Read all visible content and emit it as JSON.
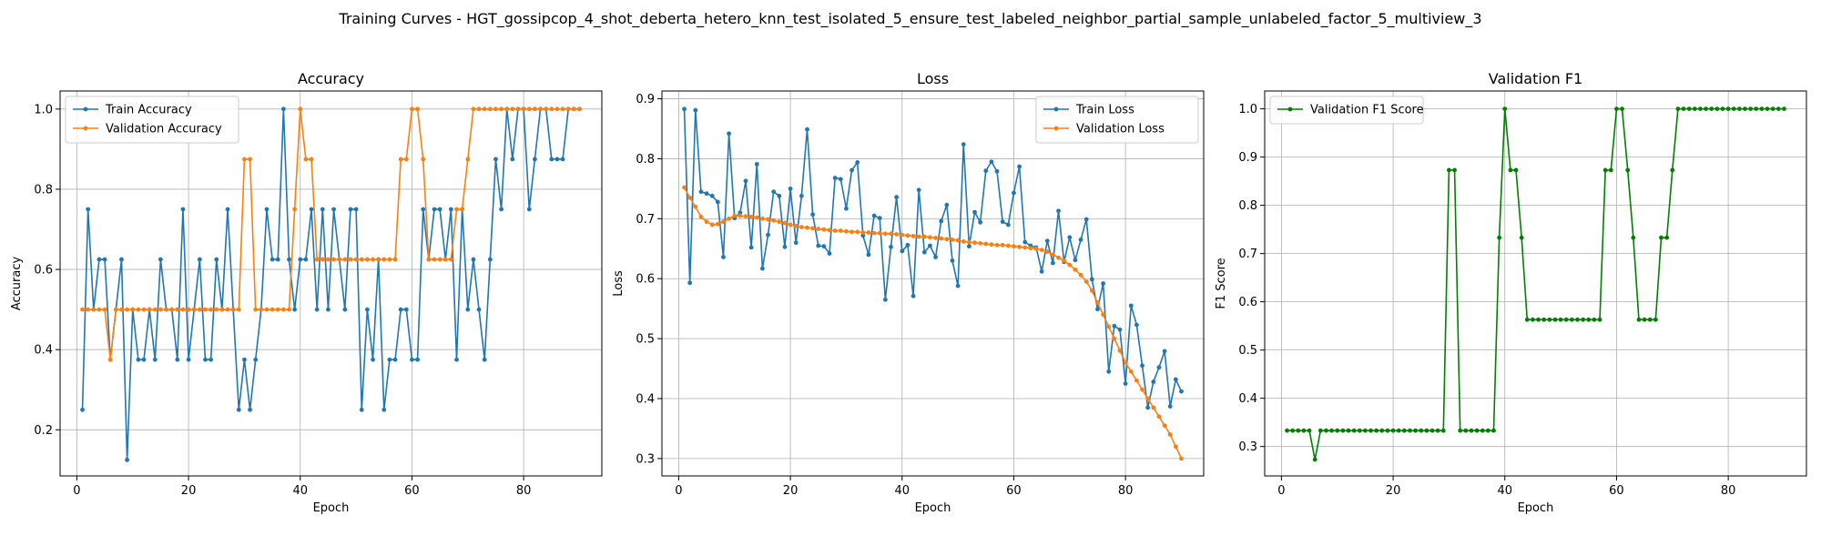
{
  "figure": {
    "suptitle": "Training Curves - HGT_gossipcop_4_shot_deberta_hetero_knn_test_isolated_5_ensure_test_labeled_neighbor_partial_sample_unlabeled_factor_5_multiview_3"
  },
  "colors": {
    "train": "#1f77b4",
    "validation": "#ff7f0e",
    "f1": "#008000",
    "grid": "#b0b0b0"
  },
  "chart_data": [
    {
      "type": "line",
      "title": "Accuracy",
      "xlabel": "Epoch",
      "ylabel": "Accuracy",
      "xlim": [
        -3,
        94
      ],
      "ylim": [
        0.085,
        1.045
      ],
      "xticks": [
        0,
        20,
        40,
        60,
        80
      ],
      "yticks": [
        0.2,
        0.4,
        0.6,
        0.8,
        1.0
      ],
      "ytick_labels": [
        "0.2",
        "0.4",
        "0.6",
        "0.8",
        "1.0"
      ],
      "grid": true,
      "legend_position": "upper-left",
      "x": [
        1,
        2,
        3,
        4,
        5,
        6,
        7,
        8,
        9,
        10,
        11,
        12,
        13,
        14,
        15,
        16,
        17,
        18,
        19,
        20,
        21,
        22,
        23,
        24,
        25,
        26,
        27,
        28,
        29,
        30,
        31,
        32,
        33,
        34,
        35,
        36,
        37,
        38,
        39,
        40,
        41,
        42,
        43,
        44,
        45,
        46,
        47,
        48,
        49,
        50,
        51,
        52,
        53,
        54,
        55,
        56,
        57,
        58,
        59,
        60,
        61,
        62,
        63,
        64,
        65,
        66,
        67,
        68,
        69,
        70,
        71,
        72,
        73,
        74,
        75,
        76,
        77,
        78,
        79,
        80,
        81,
        82,
        83,
        84,
        85,
        86,
        87,
        88,
        89,
        90
      ],
      "series": [
        {
          "name": "Train Accuracy",
          "color_key": "train",
          "values": [
            0.25,
            0.75,
            0.5,
            0.625,
            0.625,
            0.375,
            0.5,
            0.625,
            0.125,
            0.5,
            0.375,
            0.375,
            0.5,
            0.375,
            0.625,
            0.5,
            0.5,
            0.375,
            0.75,
            0.375,
            0.5,
            0.625,
            0.375,
            0.375,
            0.625,
            0.5,
            0.75,
            0.5,
            0.25,
            0.375,
            0.25,
            0.375,
            0.5,
            0.75,
            0.625,
            0.625,
            1.0,
            0.625,
            0.5,
            0.625,
            0.625,
            0.75,
            0.5,
            0.75,
            0.5,
            0.75,
            0.625,
            0.5,
            0.75,
            0.75,
            0.25,
            0.5,
            0.375,
            0.625,
            0.25,
            0.375,
            0.375,
            0.5,
            0.5,
            0.375,
            0.375,
            0.75,
            0.625,
            0.75,
            0.75,
            0.625,
            0.75,
            0.375,
            0.75,
            0.5,
            0.625,
            0.5,
            0.375,
            0.625,
            0.875,
            0.75,
            1.0,
            0.875,
            1.0,
            1.0,
            0.75,
            0.875,
            1.0,
            1.0,
            0.875,
            0.875,
            0.875,
            1.0,
            1.0,
            1.0
          ]
        },
        {
          "name": "Validation Accuracy",
          "color_key": "validation",
          "values": [
            0.5,
            0.5,
            0.5,
            0.5,
            0.5,
            0.375,
            0.5,
            0.5,
            0.5,
            0.5,
            0.5,
            0.5,
            0.5,
            0.5,
            0.5,
            0.5,
            0.5,
            0.5,
            0.5,
            0.5,
            0.5,
            0.5,
            0.5,
            0.5,
            0.5,
            0.5,
            0.5,
            0.5,
            0.5,
            0.875,
            0.875,
            0.5,
            0.5,
            0.5,
            0.5,
            0.5,
            0.5,
            0.5,
            0.75,
            1.0,
            0.875,
            0.875,
            0.625,
            0.625,
            0.625,
            0.625,
            0.625,
            0.625,
            0.625,
            0.625,
            0.625,
            0.625,
            0.625,
            0.625,
            0.625,
            0.625,
            0.625,
            0.875,
            0.875,
            1.0,
            1.0,
            0.875,
            0.625,
            0.625,
            0.625,
            0.625,
            0.625,
            0.75,
            0.75,
            0.875,
            1.0,
            1.0,
            1.0,
            1.0,
            1.0,
            1.0,
            1.0,
            1.0,
            1.0,
            1.0,
            1.0,
            1.0,
            1.0,
            1.0,
            1.0,
            1.0,
            1.0,
            1.0,
            1.0,
            1.0
          ]
        }
      ]
    },
    {
      "type": "line",
      "title": "Loss",
      "xlabel": "Epoch",
      "ylabel": "Loss",
      "xlim": [
        -3,
        94
      ],
      "ylim": [
        0.271,
        0.913
      ],
      "xticks": [
        0,
        20,
        40,
        60,
        80
      ],
      "yticks": [
        0.3,
        0.4,
        0.5,
        0.6,
        0.7,
        0.8,
        0.9
      ],
      "ytick_labels": [
        "0.3",
        "0.4",
        "0.5",
        "0.6",
        "0.7",
        "0.8",
        "0.9"
      ],
      "grid": true,
      "legend_position": "upper-right",
      "x": [
        1,
        2,
        3,
        4,
        5,
        6,
        7,
        8,
        9,
        10,
        11,
        12,
        13,
        14,
        15,
        16,
        17,
        18,
        19,
        20,
        21,
        22,
        23,
        24,
        25,
        26,
        27,
        28,
        29,
        30,
        31,
        32,
        33,
        34,
        35,
        36,
        37,
        38,
        39,
        40,
        41,
        42,
        43,
        44,
        45,
        46,
        47,
        48,
        49,
        50,
        51,
        52,
        53,
        54,
        55,
        56,
        57,
        58,
        59,
        60,
        61,
        62,
        63,
        64,
        65,
        66,
        67,
        68,
        69,
        70,
        71,
        72,
        73,
        74,
        75,
        76,
        77,
        78,
        79,
        80,
        81,
        82,
        83,
        84,
        85,
        86,
        87,
        88,
        89,
        90
      ],
      "series": [
        {
          "name": "Train Loss",
          "color_key": "train",
          "values": [
            0.883,
            0.593,
            0.881,
            0.745,
            0.742,
            0.738,
            0.728,
            0.636,
            0.842,
            0.701,
            0.71,
            0.763,
            0.652,
            0.791,
            0.617,
            0.673,
            0.745,
            0.738,
            0.653,
            0.75,
            0.66,
            0.738,
            0.849,
            0.707,
            0.655,
            0.654,
            0.642,
            0.768,
            0.766,
            0.717,
            0.781,
            0.794,
            0.672,
            0.64,
            0.705,
            0.701,
            0.565,
            0.653,
            0.736,
            0.646,
            0.656,
            0.571,
            0.748,
            0.644,
            0.655,
            0.636,
            0.696,
            0.723,
            0.63,
            0.588,
            0.824,
            0.654,
            0.711,
            0.694,
            0.78,
            0.795,
            0.779,
            0.695,
            0.69,
            0.743,
            0.787,
            0.661,
            0.655,
            0.652,
            0.612,
            0.663,
            0.626,
            0.713,
            0.628,
            0.669,
            0.631,
            0.665,
            0.699,
            0.599,
            0.549,
            0.592,
            0.445,
            0.521,
            0.515,
            0.425,
            0.555,
            0.523,
            0.455,
            0.385,
            0.428,
            0.452,
            0.479,
            0.387,
            0.432,
            0.412
          ]
        },
        {
          "name": "Validation Loss",
          "color_key": "validation",
          "values": [
            0.752,
            0.735,
            0.72,
            0.703,
            0.695,
            0.69,
            0.691,
            0.695,
            0.7,
            0.705,
            0.705,
            0.704,
            0.703,
            0.702,
            0.7,
            0.699,
            0.697,
            0.695,
            0.693,
            0.69,
            0.688,
            0.686,
            0.685,
            0.684,
            0.683,
            0.682,
            0.681,
            0.68,
            0.68,
            0.679,
            0.678,
            0.678,
            0.677,
            0.677,
            0.676,
            0.676,
            0.675,
            0.675,
            0.674,
            0.673,
            0.672,
            0.671,
            0.67,
            0.67,
            0.669,
            0.668,
            0.667,
            0.666,
            0.665,
            0.664,
            0.662,
            0.661,
            0.66,
            0.659,
            0.658,
            0.657,
            0.656,
            0.656,
            0.655,
            0.654,
            0.653,
            0.652,
            0.651,
            0.65,
            0.648,
            0.645,
            0.64,
            0.635,
            0.63,
            0.623,
            0.615,
            0.606,
            0.595,
            0.58,
            0.56,
            0.54,
            0.52,
            0.5,
            0.48,
            0.46,
            0.445,
            0.43,
            0.415,
            0.4,
            0.385,
            0.37,
            0.355,
            0.34,
            0.32,
            0.3
          ]
        }
      ]
    },
    {
      "type": "line",
      "title": "Validation F1",
      "xlabel": "Epoch",
      "ylabel": "F1 Score",
      "xlim": [
        -3,
        94
      ],
      "ylim": [
        0.239,
        1.037
      ],
      "xticks": [
        0,
        20,
        40,
        60,
        80
      ],
      "yticks": [
        0.3,
        0.4,
        0.5,
        0.6,
        0.7,
        0.8,
        0.9,
        1.0
      ],
      "ytick_labels": [
        "0.3",
        "0.4",
        "0.5",
        "0.6",
        "0.7",
        "0.8",
        "0.9",
        "1.0"
      ],
      "grid": true,
      "legend_position": "upper-left",
      "x": [
        1,
        2,
        3,
        4,
        5,
        6,
        7,
        8,
        9,
        10,
        11,
        12,
        13,
        14,
        15,
        16,
        17,
        18,
        19,
        20,
        21,
        22,
        23,
        24,
        25,
        26,
        27,
        28,
        29,
        30,
        31,
        32,
        33,
        34,
        35,
        36,
        37,
        38,
        39,
        40,
        41,
        42,
        43,
        44,
        45,
        46,
        47,
        48,
        49,
        50,
        51,
        52,
        53,
        54,
        55,
        56,
        57,
        58,
        59,
        60,
        61,
        62,
        63,
        64,
        65,
        66,
        67,
        68,
        69,
        70,
        71,
        72,
        73,
        74,
        75,
        76,
        77,
        78,
        79,
        80,
        81,
        82,
        83,
        84,
        85,
        86,
        87,
        88,
        89,
        90
      ],
      "series": [
        {
          "name": "Validation F1 Score",
          "color_key": "f1",
          "values": [
            0.333,
            0.333,
            0.333,
            0.333,
            0.333,
            0.273,
            0.333,
            0.333,
            0.333,
            0.333,
            0.333,
            0.333,
            0.333,
            0.333,
            0.333,
            0.333,
            0.333,
            0.333,
            0.333,
            0.333,
            0.333,
            0.333,
            0.333,
            0.333,
            0.333,
            0.333,
            0.333,
            0.333,
            0.333,
            0.873,
            0.873,
            0.333,
            0.333,
            0.333,
            0.333,
            0.333,
            0.333,
            0.333,
            0.733,
            1.0,
            0.873,
            0.873,
            0.733,
            0.563,
            0.563,
            0.563,
            0.563,
            0.563,
            0.563,
            0.563,
            0.563,
            0.563,
            0.563,
            0.563,
            0.563,
            0.563,
            0.563,
            0.873,
            0.873,
            1.0,
            1.0,
            0.873,
            0.733,
            0.563,
            0.563,
            0.563,
            0.563,
            0.733,
            0.733,
            0.873,
            1.0,
            1.0,
            1.0,
            1.0,
            1.0,
            1.0,
            1.0,
            1.0,
            1.0,
            1.0,
            1.0,
            1.0,
            1.0,
            1.0,
            1.0,
            1.0,
            1.0,
            1.0,
            1.0,
            1.0
          ]
        }
      ]
    }
  ]
}
